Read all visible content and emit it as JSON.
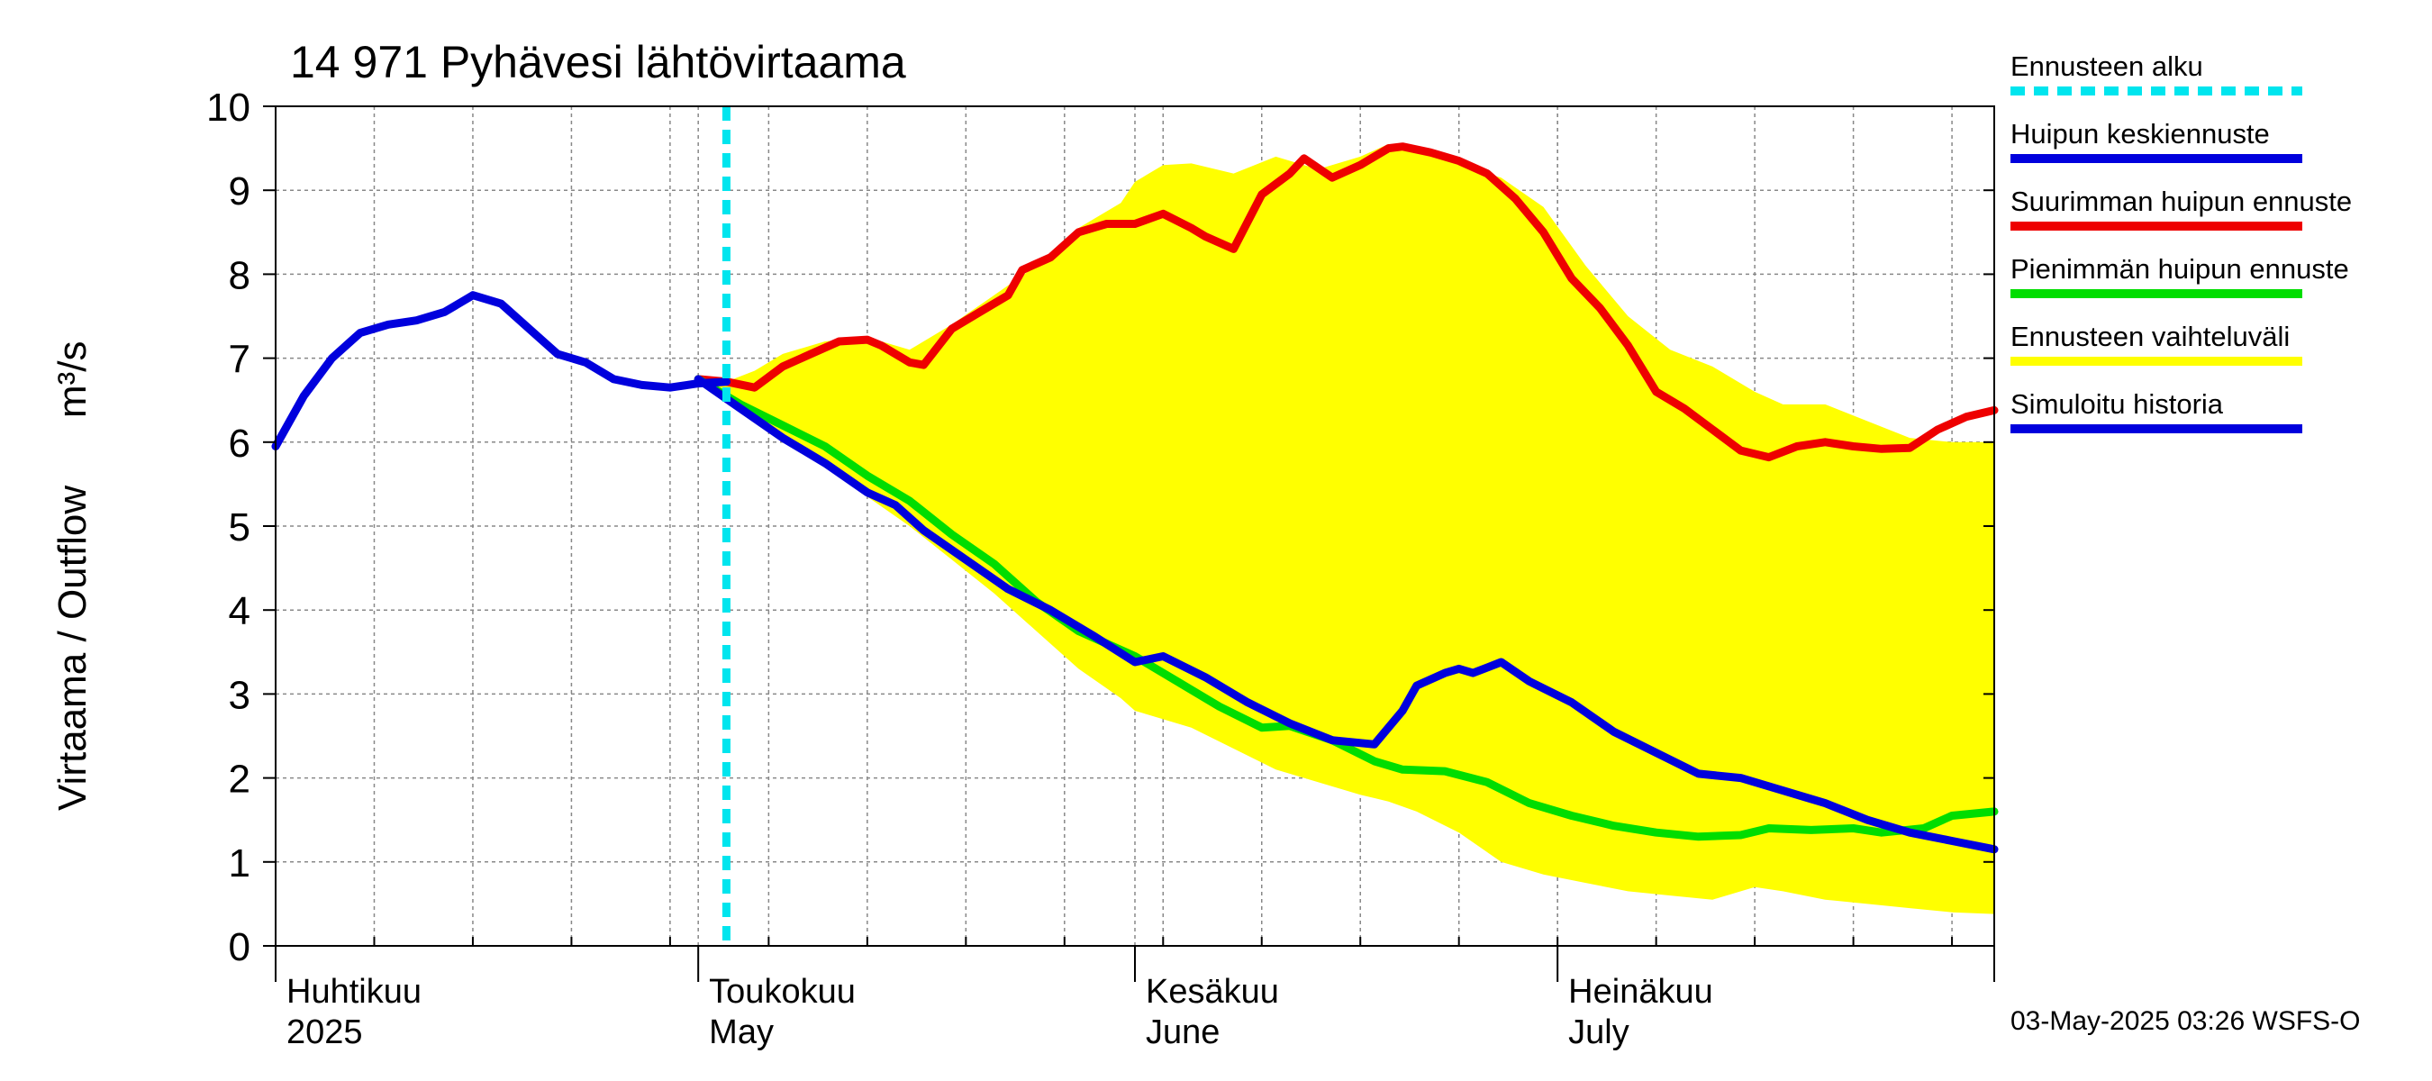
{
  "chart_data": {
    "type": "line",
    "title": "14 971 Pyhävesi lähtövirtaama",
    "ylabel_fi": "Virtaama / Outflow",
    "ylabel_unit": "m³/s",
    "ylim": [
      0,
      10
    ],
    "yticks": [
      "0",
      "1",
      "2",
      "3",
      "4",
      "5",
      "6",
      "7",
      "8",
      "9",
      "10"
    ],
    "x_range": [
      "2025-04-01",
      "2025-08-01"
    ],
    "forecast_start": "2025-05-03",
    "grid": true,
    "legend_position": "right",
    "months": [
      {
        "date": "2025-04-01",
        "label1": "Huhtikuu",
        "label2": "2025"
      },
      {
        "date": "2025-05-01",
        "label1": "Toukokuu",
        "label2": "May"
      },
      {
        "date": "2025-06-01",
        "label1": "Kesäkuu",
        "label2": "June"
      },
      {
        "date": "2025-07-01",
        "label1": "Heinäkuu",
        "label2": "July"
      }
    ],
    "footer": "03-May-2025 03:26 WSFS-O",
    "legend": [
      {
        "label": "Ennusteen alku",
        "color": "#00e5ee",
        "style": "dashed"
      },
      {
        "label": "Huipun keskiennuste",
        "color": "#0000dd",
        "style": "solid"
      },
      {
        "label": "Suurimman huipun ennuste",
        "color": "#ee0000",
        "style": "solid"
      },
      {
        "label": "Pienimmän huipun ennuste",
        "color": "#00dd00",
        "style": "solid"
      },
      {
        "label": "Ennusteen vaihteluväli",
        "color": "#ffff00",
        "style": "solid"
      },
      {
        "label": "Simuloitu historia",
        "color": "#0000dd",
        "style": "solid"
      }
    ],
    "series": [
      {
        "name": "Ennusteen vaihteluväli",
        "kind": "band",
        "color": "#ffff00",
        "x": [
          "2025-05-01",
          "2025-05-03",
          "2025-05-05",
          "2025-05-07",
          "2025-05-10",
          "2025-05-13",
          "2025-05-16",
          "2025-05-19",
          "2025-05-22",
          "2025-05-25",
          "2025-05-28",
          "2025-05-31",
          "2025-06-01",
          "2025-06-03",
          "2025-06-05",
          "2025-06-08",
          "2025-06-11",
          "2025-06-14",
          "2025-06-17",
          "2025-06-19",
          "2025-06-21",
          "2025-06-24",
          "2025-06-27",
          "2025-06-30",
          "2025-07-03",
          "2025-07-06",
          "2025-07-09",
          "2025-07-12",
          "2025-07-15",
          "2025-07-17",
          "2025-07-20",
          "2025-07-23",
          "2025-07-26",
          "2025-07-29",
          "2025-08-01"
        ],
        "upper": [
          6.75,
          6.72,
          6.85,
          7.05,
          7.2,
          7.25,
          7.1,
          7.4,
          7.75,
          8.1,
          8.55,
          8.85,
          9.1,
          9.3,
          9.32,
          9.2,
          9.4,
          9.25,
          9.4,
          9.55,
          9.5,
          9.3,
          9.15,
          8.8,
          8.1,
          7.5,
          7.1,
          6.9,
          6.6,
          6.45,
          6.45,
          6.25,
          6.05,
          6.0,
          6.0
        ],
        "lower": [
          6.75,
          6.6,
          6.3,
          6.0,
          5.7,
          5.35,
          5.0,
          4.6,
          4.2,
          3.75,
          3.3,
          2.95,
          2.8,
          2.7,
          2.6,
          2.35,
          2.1,
          1.95,
          1.8,
          1.72,
          1.6,
          1.35,
          1.0,
          0.85,
          0.75,
          0.65,
          0.6,
          0.55,
          0.7,
          0.65,
          0.55,
          0.5,
          0.45,
          0.4,
          0.38
        ]
      },
      {
        "name": "Suurimman huipun ennuste",
        "color": "#ee0000",
        "x": [
          "2025-05-01",
          "2025-05-03",
          "2025-05-05",
          "2025-05-07",
          "2025-05-09",
          "2025-05-11",
          "2025-05-13",
          "2025-05-14",
          "2025-05-16",
          "2025-05-17",
          "2025-05-19",
          "2025-05-21",
          "2025-05-23",
          "2025-05-24",
          "2025-05-26",
          "2025-05-28",
          "2025-05-30",
          "2025-06-01",
          "2025-06-03",
          "2025-06-05",
          "2025-06-06",
          "2025-06-08",
          "2025-06-10",
          "2025-06-12",
          "2025-06-13",
          "2025-06-15",
          "2025-06-17",
          "2025-06-19",
          "2025-06-20",
          "2025-06-22",
          "2025-06-24",
          "2025-06-26",
          "2025-06-28",
          "2025-06-30",
          "2025-07-02",
          "2025-07-04",
          "2025-07-06",
          "2025-07-08",
          "2025-07-10",
          "2025-07-12",
          "2025-07-14",
          "2025-07-16",
          "2025-07-18",
          "2025-07-20",
          "2025-07-22",
          "2025-07-24",
          "2025-07-26",
          "2025-07-28",
          "2025-07-30",
          "2025-08-01"
        ],
        "values": [
          6.75,
          6.72,
          6.65,
          6.9,
          7.05,
          7.2,
          7.22,
          7.15,
          6.95,
          6.92,
          7.35,
          7.55,
          7.75,
          8.05,
          8.2,
          8.5,
          8.6,
          8.6,
          8.72,
          8.55,
          8.45,
          8.3,
          8.95,
          9.2,
          9.38,
          9.15,
          9.3,
          9.5,
          9.52,
          9.45,
          9.35,
          9.2,
          8.9,
          8.5,
          7.95,
          7.6,
          7.15,
          6.6,
          6.4,
          6.15,
          5.9,
          5.82,
          5.95,
          6.0,
          5.95,
          5.92,
          5.93,
          6.15,
          6.3,
          6.38
        ]
      },
      {
        "name": "Pienimmän huipun ennuste",
        "color": "#00dd00",
        "x": [
          "2025-05-01",
          "2025-05-04",
          "2025-05-07",
          "2025-05-10",
          "2025-05-13",
          "2025-05-16",
          "2025-05-19",
          "2025-05-22",
          "2025-05-25",
          "2025-05-28",
          "2025-06-01",
          "2025-06-04",
          "2025-06-07",
          "2025-06-10",
          "2025-06-12",
          "2025-06-15",
          "2025-06-18",
          "2025-06-20",
          "2025-06-23",
          "2025-06-26",
          "2025-06-29",
          "2025-07-02",
          "2025-07-05",
          "2025-07-08",
          "2025-07-11",
          "2025-07-14",
          "2025-07-16",
          "2025-07-19",
          "2025-07-22",
          "2025-07-24",
          "2025-07-27",
          "2025-07-29",
          "2025-08-01"
        ],
        "values": [
          6.75,
          6.45,
          6.2,
          5.95,
          5.6,
          5.3,
          4.9,
          4.55,
          4.1,
          3.75,
          3.45,
          3.15,
          2.85,
          2.6,
          2.62,
          2.45,
          2.2,
          2.1,
          2.08,
          1.95,
          1.7,
          1.55,
          1.43,
          1.35,
          1.3,
          1.32,
          1.4,
          1.38,
          1.4,
          1.35,
          1.4,
          1.55,
          1.6
        ]
      },
      {
        "name": "Huipun keskiennuste",
        "color": "#0000dd",
        "x": [
          "2025-05-01",
          "2025-05-04",
          "2025-05-07",
          "2025-05-10",
          "2025-05-13",
          "2025-05-15",
          "2025-05-17",
          "2025-05-20",
          "2025-05-23",
          "2025-05-26",
          "2025-05-29",
          "2025-06-01",
          "2025-06-03",
          "2025-06-06",
          "2025-06-09",
          "2025-06-12",
          "2025-06-15",
          "2025-06-18",
          "2025-06-20",
          "2025-06-21",
          "2025-06-23",
          "2025-06-24",
          "2025-06-25",
          "2025-06-27",
          "2025-06-29",
          "2025-07-02",
          "2025-07-05",
          "2025-07-08",
          "2025-07-11",
          "2025-07-14",
          "2025-07-17",
          "2025-07-20",
          "2025-07-23",
          "2025-07-26",
          "2025-07-29",
          "2025-08-01"
        ],
        "values": [
          6.75,
          6.4,
          6.05,
          5.75,
          5.4,
          5.25,
          4.95,
          4.6,
          4.25,
          4.0,
          3.7,
          3.38,
          3.45,
          3.2,
          2.9,
          2.65,
          2.45,
          2.4,
          2.8,
          3.1,
          3.25,
          3.3,
          3.25,
          3.38,
          3.15,
          2.9,
          2.55,
          2.3,
          2.05,
          2.0,
          1.85,
          1.7,
          1.5,
          1.35,
          1.25,
          1.15
        ]
      },
      {
        "name": "Simuloitu historia",
        "color": "#0000dd",
        "x": [
          "2025-04-01",
          "2025-04-03",
          "2025-04-05",
          "2025-04-07",
          "2025-04-09",
          "2025-04-11",
          "2025-04-13",
          "2025-04-15",
          "2025-04-17",
          "2025-04-19",
          "2025-04-21",
          "2025-04-23",
          "2025-04-25",
          "2025-04-27",
          "2025-04-29",
          "2025-05-01",
          "2025-05-03"
        ],
        "values": [
          5.95,
          6.55,
          7.0,
          7.3,
          7.4,
          7.45,
          7.55,
          7.75,
          7.65,
          7.35,
          7.05,
          6.95,
          6.75,
          6.68,
          6.65,
          6.7,
          6.72
        ]
      }
    ]
  }
}
